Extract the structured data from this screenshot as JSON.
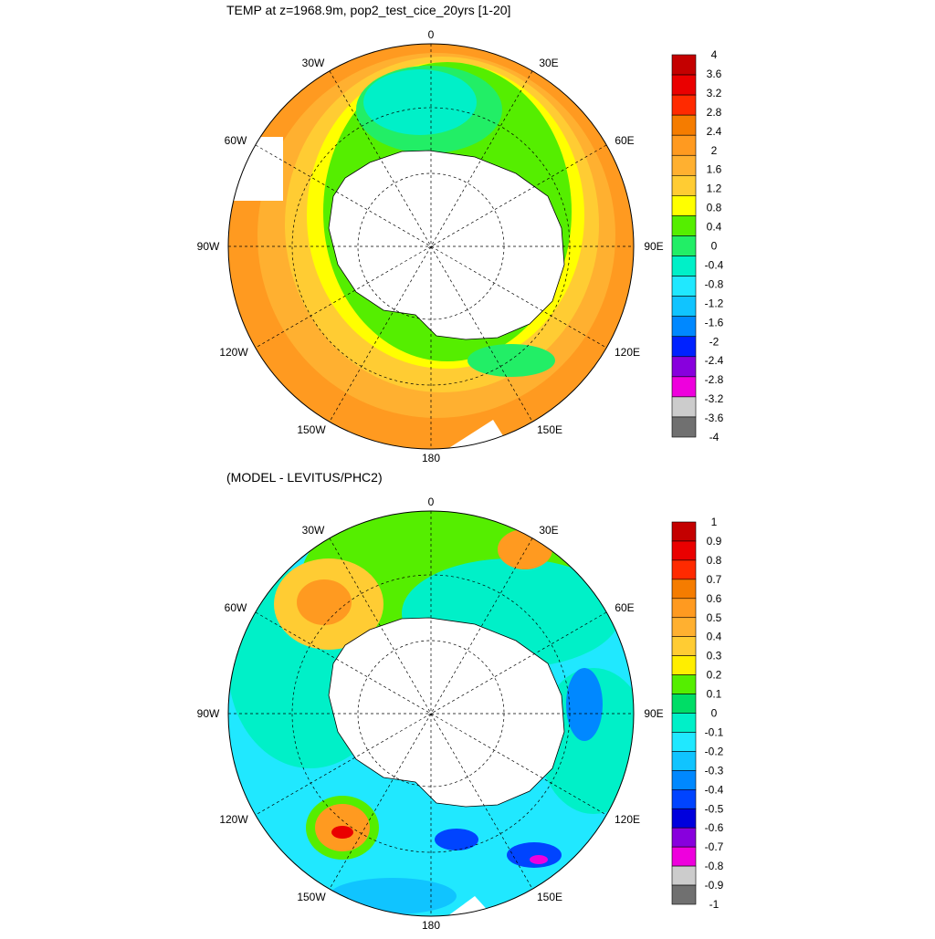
{
  "panels": [
    {
      "title": "TEMP at z=1968.9m, pop2_test_cice_20yrs [1-20]",
      "colorbar": {
        "labels": [
          "4",
          "3.6",
          "3.2",
          "2.8",
          "2.4",
          "2",
          "1.6",
          "1.2",
          "0.8",
          "0.4",
          "0",
          "-0.4",
          "-0.8",
          "-1.2",
          "-1.6",
          "-2",
          "-2.4",
          "-2.8",
          "-3.2",
          "-3.6",
          "-4"
        ],
        "colors": [
          "#c40000",
          "#ea0000",
          "#ff2a00",
          "#f57c00",
          "#ff9a20",
          "#ffb030",
          "#ffcc33",
          "#ffff00",
          "#55ee00",
          "#22ee66",
          "#00f0c8",
          "#20e8ff",
          "#10c4ff",
          "#0088ff",
          "#0022ff",
          "#8800dd",
          "#ee00dd",
          "#cccccc",
          "#707070"
        ]
      }
    },
    {
      "title": "(MODEL - LEVITUS/PHC2)",
      "colorbar": {
        "labels": [
          "1",
          "0.9",
          "0.8",
          "0.7",
          "0.6",
          "0.5",
          "0.4",
          "0.3",
          "0.2",
          "0.1",
          "0",
          "-0.1",
          "-0.2",
          "-0.3",
          "-0.4",
          "-0.5",
          "-0.6",
          "-0.7",
          "-0.8",
          "-0.9",
          "-1"
        ],
        "colors": [
          "#c40000",
          "#ea0000",
          "#ff2a00",
          "#f57c00",
          "#ff9a20",
          "#ffb030",
          "#ffcc33",
          "#ffee00",
          "#55ee00",
          "#00dd66",
          "#00f0c8",
          "#20e8ff",
          "#10c4ff",
          "#0088ff",
          "#0044ff",
          "#0000dd",
          "#8800dd",
          "#ee00dd",
          "#cccccc",
          "#707070"
        ]
      }
    }
  ],
  "map": {
    "lon_labels": [
      "0",
      "30E",
      "60E",
      "90E",
      "120E",
      "150E",
      "180",
      "150W",
      "120W",
      "90W",
      "60W",
      "30W"
    ]
  }
}
